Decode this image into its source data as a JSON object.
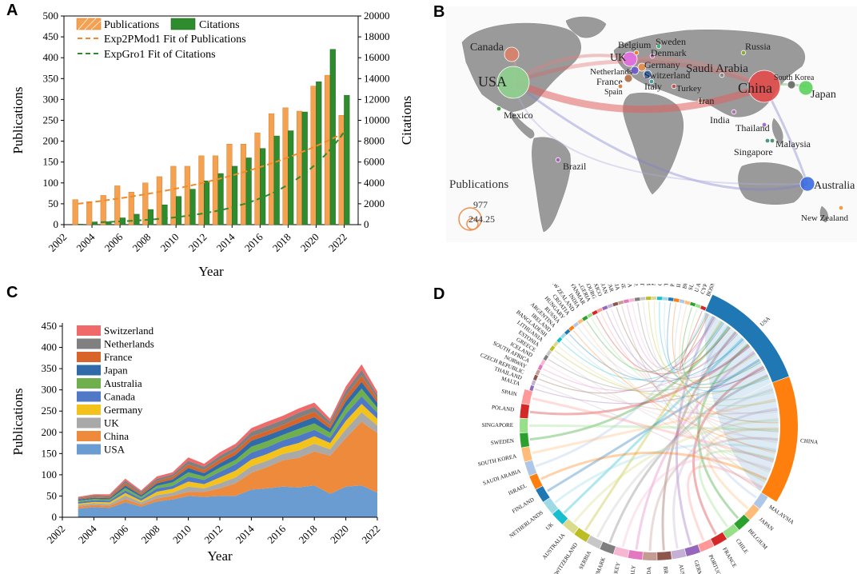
{
  "panels": {
    "a": {
      "label": "A"
    },
    "b": {
      "label": "B"
    },
    "c": {
      "label": "C"
    },
    "d": {
      "label": "D"
    }
  },
  "chart_data": [
    {
      "panel": "A",
      "type": "bar",
      "xlabel": "Year",
      "ylabel": "Publications",
      "ylabel_right": "Citations",
      "ylim": [
        0,
        500
      ],
      "ylim_right": [
        0,
        20000
      ],
      "x_ticks": [
        "2002",
        "2004",
        "2006",
        "2008",
        "2010",
        "2012",
        "2014",
        "2016",
        "2018",
        "2020",
        "2022"
      ],
      "y_ticks": [
        "0",
        "50",
        "100",
        "150",
        "200",
        "250",
        "300",
        "350",
        "400",
        "450",
        "500"
      ],
      "y_ticks_right": [
        "0",
        "2000",
        "4000",
        "6000",
        "8000",
        "10000",
        "12000",
        "14000",
        "16000",
        "18000",
        "20000"
      ],
      "categories": [
        2003,
        2004,
        2005,
        2006,
        2007,
        2008,
        2009,
        2010,
        2011,
        2012,
        2013,
        2014,
        2015,
        2016,
        2017,
        2018,
        2019,
        2020,
        2021,
        2022
      ],
      "series": [
        {
          "name": "Publications",
          "axis": "left",
          "color": "#F4A152",
          "values": [
            60,
            55,
            70,
            93,
            78,
            100,
            115,
            140,
            140,
            165,
            165,
            193,
            193,
            220,
            266,
            280,
            272,
            332,
            358,
            262
          ]
        },
        {
          "name": "Citations",
          "axis": "right",
          "color": "#2E8B2E",
          "values": [
            50,
            150,
            280,
            650,
            1000,
            1450,
            1900,
            2700,
            3400,
            4200,
            4900,
            5600,
            6400,
            7300,
            8500,
            9000,
            10800,
            13700,
            16800,
            12400
          ]
        }
      ],
      "fits": [
        {
          "name": "Exp2PMod1 Fit of Publications",
          "color": "#F08A2A"
        },
        {
          "name": "ExpGro1 Fit of Citations",
          "color": "#2E8B2E"
        }
      ]
    },
    {
      "panel": "C",
      "type": "area",
      "xlabel": "Year",
      "ylabel": "Publications",
      "ylim": [
        0,
        450
      ],
      "x_ticks": [
        "2002",
        "2004",
        "2006",
        "2008",
        "2010",
        "2012",
        "2014",
        "2016",
        "2018",
        "2020",
        "2022"
      ],
      "y_ticks": [
        "0",
        "50",
        "100",
        "150",
        "200",
        "250",
        "300",
        "350",
        "400",
        "450"
      ],
      "x": [
        2003,
        2004,
        2005,
        2006,
        2007,
        2008,
        2009,
        2010,
        2011,
        2012,
        2013,
        2014,
        2015,
        2016,
        2017,
        2018,
        2019,
        2020,
        2021,
        2022
      ],
      "series": [
        {
          "name": "USA",
          "color": "#6A9BD1",
          "values": [
            20,
            24,
            22,
            35,
            25,
            37,
            42,
            50,
            48,
            50,
            50,
            65,
            68,
            72,
            70,
            75,
            55,
            72,
            75,
            58
          ]
        },
        {
          "name": "China",
          "color": "#EE8A3C",
          "values": [
            5,
            5,
            5,
            8,
            5,
            7,
            8,
            10,
            12,
            18,
            30,
            40,
            50,
            62,
            70,
            80,
            90,
            115,
            150,
            140
          ]
        },
        {
          "name": "UK",
          "color": "#A9A9A9",
          "values": [
            4,
            4,
            4,
            8,
            5,
            8,
            8,
            12,
            8,
            12,
            14,
            15,
            15,
            15,
            17,
            18,
            15,
            20,
            22,
            18
          ]
        },
        {
          "name": "Germany",
          "color": "#F3C21B",
          "values": [
            3,
            3,
            4,
            6,
            4,
            8,
            9,
            12,
            10,
            14,
            16,
            16,
            16,
            16,
            18,
            18,
            15,
            20,
            20,
            16
          ]
        },
        {
          "name": "Canada",
          "color": "#4F78C6",
          "values": [
            4,
            4,
            4,
            6,
            5,
            8,
            7,
            12,
            10,
            13,
            15,
            16,
            16,
            16,
            17,
            15,
            12,
            16,
            18,
            14
          ]
        },
        {
          "name": "Australia",
          "color": "#6FAF4E",
          "values": [
            3,
            3,
            3,
            6,
            4,
            6,
            8,
            10,
            8,
            10,
            10,
            14,
            14,
            13,
            16,
            15,
            12,
            16,
            18,
            12
          ]
        },
        {
          "name": "Japan",
          "color": "#2F6BA8",
          "values": [
            3,
            3,
            3,
            6,
            4,
            6,
            7,
            10,
            8,
            10,
            12,
            14,
            14,
            13,
            14,
            15,
            10,
            14,
            16,
            12
          ]
        },
        {
          "name": "France",
          "color": "#D9642A",
          "values": [
            2,
            3,
            3,
            5,
            4,
            5,
            6,
            8,
            7,
            9,
            9,
            10,
            10,
            10,
            12,
            12,
            8,
            12,
            14,
            9
          ]
        },
        {
          "name": "Netherlands",
          "color": "#808080",
          "values": [
            2,
            3,
            3,
            6,
            4,
            6,
            6,
            9,
            8,
            9,
            9,
            11,
            12,
            12,
            12,
            12,
            8,
            13,
            14,
            9
          ]
        },
        {
          "name": "Switzerland",
          "color": "#F06A6A",
          "values": [
            2,
            2,
            3,
            5,
            3,
            5,
            5,
            8,
            7,
            8,
            8,
            9,
            10,
            10,
            10,
            10,
            7,
            10,
            13,
            8
          ]
        }
      ]
    }
  ],
  "map": {
    "legend_title": "Publications",
    "legend_max": "977",
    "legend_min": "244.25",
    "countries": [
      {
        "name": "USA",
        "color": "#8FD18F",
        "size": "large"
      },
      {
        "name": "China",
        "color": "#E34B4B",
        "size": "large"
      },
      {
        "name": "Canada",
        "color": "#D9826A",
        "size": "mid"
      },
      {
        "name": "UK",
        "color": "#E36FE3",
        "size": "mid"
      },
      {
        "name": "Germany",
        "color": "#E8904B",
        "size": "small"
      },
      {
        "name": "Belgium",
        "color": "#F07A1A",
        "size": "tiny"
      },
      {
        "name": "Sweden",
        "color": "#3BAF7A",
        "size": "tiny"
      },
      {
        "name": "Denmark",
        "color": "#B05AA0",
        "size": "tiny"
      },
      {
        "name": "Netherlands",
        "color": "#6A5ACD",
        "size": "small"
      },
      {
        "name": "France",
        "color": "#B06A40",
        "size": "small"
      },
      {
        "name": "Switzerland",
        "color": "#3A6AB0",
        "size": "small"
      },
      {
        "name": "Italy",
        "color": "#3AA0A0",
        "size": "tiny"
      },
      {
        "name": "Spain",
        "color": "#C87A3A",
        "size": "tiny"
      },
      {
        "name": "Russia",
        "color": "#88A830",
        "size": "tiny"
      },
      {
        "name": "Saudi Arabia",
        "color": "#888888",
        "size": "tiny"
      },
      {
        "name": "Turkey",
        "color": "#C05050",
        "size": "tiny"
      },
      {
        "name": "Iran",
        "color": "#C07050",
        "size": "tiny"
      },
      {
        "name": "India",
        "color": "#B070B0",
        "size": "tiny"
      },
      {
        "name": "Thailand",
        "color": "#A060C0",
        "size": "tiny"
      },
      {
        "name": "Singapore",
        "color": "#3A8A7A",
        "size": "tiny"
      },
      {
        "name": "Malaysia",
        "color": "#3A8A5A",
        "size": "tiny"
      },
      {
        "name": "South Korea",
        "color": "#666666",
        "size": "small"
      },
      {
        "name": "Japan",
        "color": "#5AD05A",
        "size": "mid"
      },
      {
        "name": "Mexico",
        "color": "#3A9A3A",
        "size": "tiny"
      },
      {
        "name": "Brazil",
        "color": "#A060B0",
        "size": "tiny"
      },
      {
        "name": "Australia",
        "color": "#3A6AE0",
        "size": "mid"
      },
      {
        "name": "New Zealand",
        "color": "#F09040",
        "size": "tiny"
      }
    ]
  },
  "chord": {
    "countries": [
      "USA",
      "CHINA",
      "MALAYSIA",
      "JAPAN",
      "BELGIUM",
      "CHILE",
      "FRANCE",
      "PORTUGAL",
      "GERMANY",
      "AUSTRIA",
      "BRAZIL",
      "CANADA",
      "ITALY",
      "TURKEY",
      "DENMARK",
      "SERBIA",
      "SWITZERLAND",
      "AUSTRALIA",
      "UK",
      "NETHERLANDS",
      "FINLAND",
      "ISRAEL",
      "SAUDI ARABIA",
      "SOUTH KOREA",
      "SWEDEN",
      "SINGAPORE",
      "POLAND",
      "SPAIN",
      "MALTA",
      "THAILAND",
      "CZECH REPUBLIC",
      "NORWAY",
      "SOUTH AFRICA",
      "ICELAND",
      "GREECE",
      "ESTONIA",
      "LITHUANIA",
      "BANGLADESH",
      "IRELAND",
      "ARGENTINA",
      "RUSSIA",
      "HUNGARY",
      "CROATIA",
      "NEW ZEALAND",
      "INDIA",
      "MYANMAR",
      "ALGERIA",
      "LUXEMBOURG",
      "MEXICO",
      "IRAN",
      "QATAR",
      "SLOVENIA",
      "UKRAINE",
      "ROMANIA",
      "DOMINICAN REP.",
      "EGYPT",
      "VIETNAM",
      "MONGOLIA",
      "GUATEMALA",
      "TUNISIA",
      "PAKISTAN",
      "IRAQ",
      "BULGARIA",
      "SLOVAKIA",
      "U ARAB EMIRATES",
      "CYPRUS",
      "BOSNIA & HERCEG"
    ],
    "colors": [
      "#1F77B4",
      "#FF7F0E",
      "#AEC7E8",
      "#FFBB78",
      "#2CA02C",
      "#98DF8A",
      "#D62728",
      "#FF9896",
      "#9467BD",
      "#C5B0D5",
      "#8C564B",
      "#C49C94",
      "#E377C2",
      "#F7B6D2",
      "#7F7F7F",
      "#C7C7C7",
      "#BCBD22",
      "#DBDB8D",
      "#17BECF",
      "#9EDAE5"
    ]
  }
}
